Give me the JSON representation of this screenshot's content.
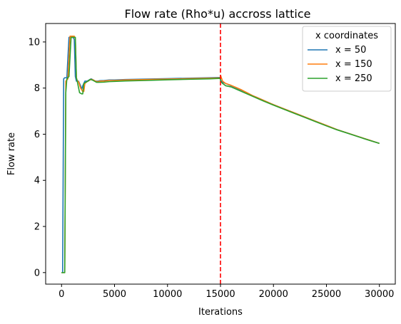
{
  "chart_data": {
    "type": "line",
    "title": "Flow rate (Rho*u) accross lattice",
    "xlabel": "Iterations",
    "ylabel": "Flow rate",
    "xlim": [
      -1500,
      31500
    ],
    "ylim": [
      -0.5,
      10.8
    ],
    "xticks": [
      0,
      5000,
      10000,
      15000,
      20000,
      25000,
      30000
    ],
    "yticks": [
      0,
      2,
      4,
      6,
      8,
      10
    ],
    "grid": false,
    "legend": {
      "title": "x coordinates",
      "position": "top-right"
    },
    "vline": {
      "x": 15000,
      "color": "#ff0000",
      "style": "dashed"
    },
    "series": [
      {
        "name": "x = 50",
        "color": "#1f77b4",
        "x": [
          0,
          100,
          200,
          300,
          500,
          700,
          900,
          1000,
          1100,
          1200,
          1300,
          1400,
          1600,
          1800,
          1900,
          2000,
          2200,
          2400,
          2600,
          2800,
          3000,
          3200,
          3400,
          3600,
          4000,
          4500,
          5000,
          6000,
          8000,
          10000,
          12000,
          14000,
          14990,
          15010,
          15200,
          15500,
          16000,
          16500,
          17000,
          17500,
          18000,
          18500,
          19000,
          20000,
          21000,
          22000,
          23000,
          24000,
          25000,
          26000,
          27000,
          28000,
          29000,
          30000
        ],
        "y": [
          0,
          0,
          8.4,
          8.45,
          8.45,
          10.2,
          10.2,
          10.2,
          10.2,
          10.1,
          8.5,
          8.3,
          8.3,
          8.1,
          7.95,
          8.1,
          8.3,
          8.3,
          8.35,
          8.4,
          8.35,
          8.3,
          8.3,
          8.32,
          8.33,
          8.35,
          8.35,
          8.37,
          8.39,
          8.41,
          8.43,
          8.45,
          8.46,
          8.35,
          8.25,
          8.2,
          8.1,
          8.0,
          7.9,
          7.8,
          7.68,
          7.58,
          7.48,
          7.28,
          7.1,
          6.92,
          6.74,
          6.56,
          6.38,
          6.2,
          6.05,
          5.9,
          5.75,
          5.6
        ]
      },
      {
        "name": "x = 150",
        "color": "#ff7f0e",
        "x": [
          0,
          200,
          300,
          400,
          600,
          800,
          1000,
          1100,
          1200,
          1300,
          1400,
          1500,
          1600,
          1800,
          2000,
          2100,
          2200,
          2400,
          2600,
          2800,
          3000,
          3200,
          3400,
          3600,
          4000,
          4500,
          5000,
          6000,
          8000,
          10000,
          12000,
          14000,
          14990,
          15010,
          15200,
          15500,
          16000,
          16500,
          17000,
          17500,
          18000,
          18500,
          19000,
          20000,
          21000,
          22000,
          23000,
          24000,
          25000,
          26000,
          27000,
          28000,
          29000,
          30000
        ],
        "y": [
          0,
          0,
          0,
          8.3,
          8.4,
          10.25,
          10.25,
          10.25,
          10.25,
          10.15,
          8.45,
          8.3,
          8.28,
          8.0,
          7.85,
          7.85,
          8.2,
          8.28,
          8.33,
          8.38,
          8.35,
          8.3,
          8.28,
          8.3,
          8.31,
          8.33,
          8.33,
          8.35,
          8.37,
          8.39,
          8.41,
          8.43,
          8.44,
          8.55,
          8.3,
          8.2,
          8.12,
          8.02,
          7.92,
          7.8,
          7.68,
          7.58,
          7.48,
          7.28,
          7.1,
          6.92,
          6.74,
          6.56,
          6.38,
          6.2,
          6.05,
          5.9,
          5.75,
          5.6
        ]
      },
      {
        "name": "x = 250",
        "color": "#2ca02c",
        "x": [
          0,
          200,
          300,
          400,
          500,
          700,
          900,
          1000,
          1100,
          1200,
          1300,
          1400,
          1500,
          1700,
          1900,
          2000,
          2100,
          2300,
          2500,
          2700,
          2900,
          3100,
          3300,
          3500,
          4000,
          4500,
          5000,
          6000,
          8000,
          10000,
          12000,
          14000,
          14990,
          15010,
          15200,
          15500,
          16000,
          16500,
          17000,
          17500,
          18000,
          18500,
          19000,
          20000,
          21000,
          22000,
          23000,
          24000,
          25000,
          26000,
          27000,
          28000,
          29000,
          30000
        ],
        "y": [
          0,
          0,
          0,
          7.8,
          8.4,
          8.5,
          10.2,
          10.2,
          10.2,
          10.2,
          10.2,
          8.45,
          8.25,
          7.8,
          7.75,
          7.75,
          8.2,
          8.25,
          8.3,
          8.38,
          8.35,
          8.3,
          8.25,
          8.25,
          8.26,
          8.28,
          8.29,
          8.31,
          8.33,
          8.36,
          8.38,
          8.4,
          8.42,
          8.3,
          8.2,
          8.1,
          8.05,
          7.95,
          7.85,
          7.75,
          7.65,
          7.55,
          7.45,
          7.26,
          7.08,
          6.9,
          6.72,
          6.54,
          6.36,
          6.19,
          6.04,
          5.89,
          5.74,
          5.6
        ]
      }
    ]
  }
}
